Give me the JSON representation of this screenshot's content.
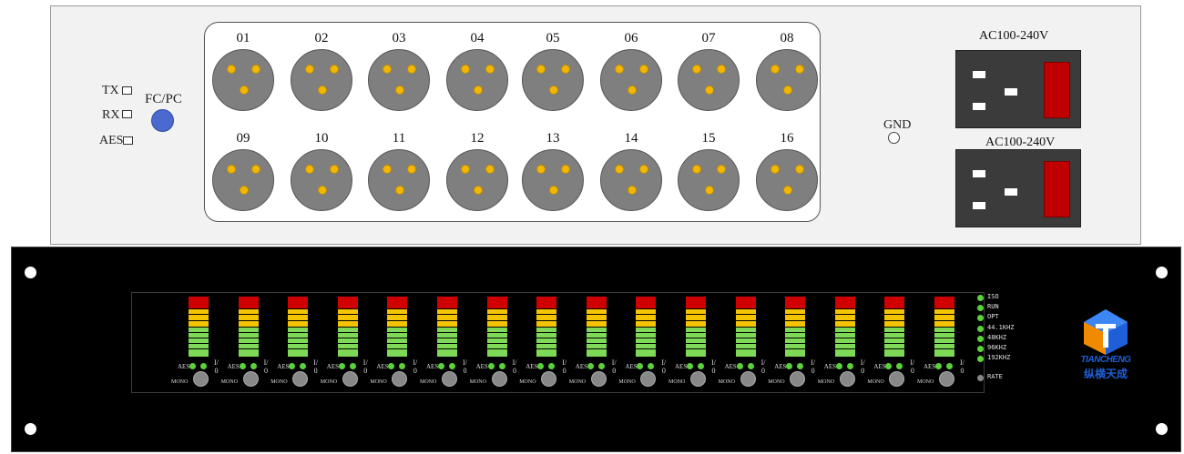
{
  "rear": {
    "status": [
      {
        "label": "TX"
      },
      {
        "label": "RX"
      },
      {
        "label": "AES"
      }
    ],
    "fc_label": "FC/PC",
    "ports_top": [
      "01",
      "02",
      "03",
      "04",
      "05",
      "06",
      "07",
      "08"
    ],
    "ports_bottom": [
      "09",
      "10",
      "11",
      "12",
      "13",
      "14",
      "15",
      "16"
    ],
    "gnd_label": "GND",
    "psu_top_label": "AC100-240V",
    "psu_bottom_label": "AC100-240V"
  },
  "front": {
    "channel_count": 16,
    "aes_label": "AES",
    "io_label_top": "I/",
    "io_label_bottom": "0",
    "mono_label": "MONO",
    "status_indicators": [
      "ISO",
      "RUN",
      "OPT",
      "44.1KHZ",
      "48KHZ",
      "96KHZ",
      "192KHZ"
    ],
    "rate_label": "RATE",
    "logo_en": "TIANCHENG",
    "logo_cn": "纵横天成"
  },
  "colors": {
    "panel_bg": "#f2f2f2",
    "xlr_body": "#7f7f7f",
    "xlr_pin": "#f2b705",
    "fc_port": "#4a6ad0",
    "psu_body": "#3b3b3b",
    "psu_switch": "#c00000",
    "front_bg": "#000000",
    "vu_red": "#d00000",
    "vu_yellow": "#f5c400",
    "vu_green": "#7ed957",
    "led_green": "#5bd13c",
    "logo_blue": "#1e5fd8",
    "logo_orange": "#f08a00"
  }
}
